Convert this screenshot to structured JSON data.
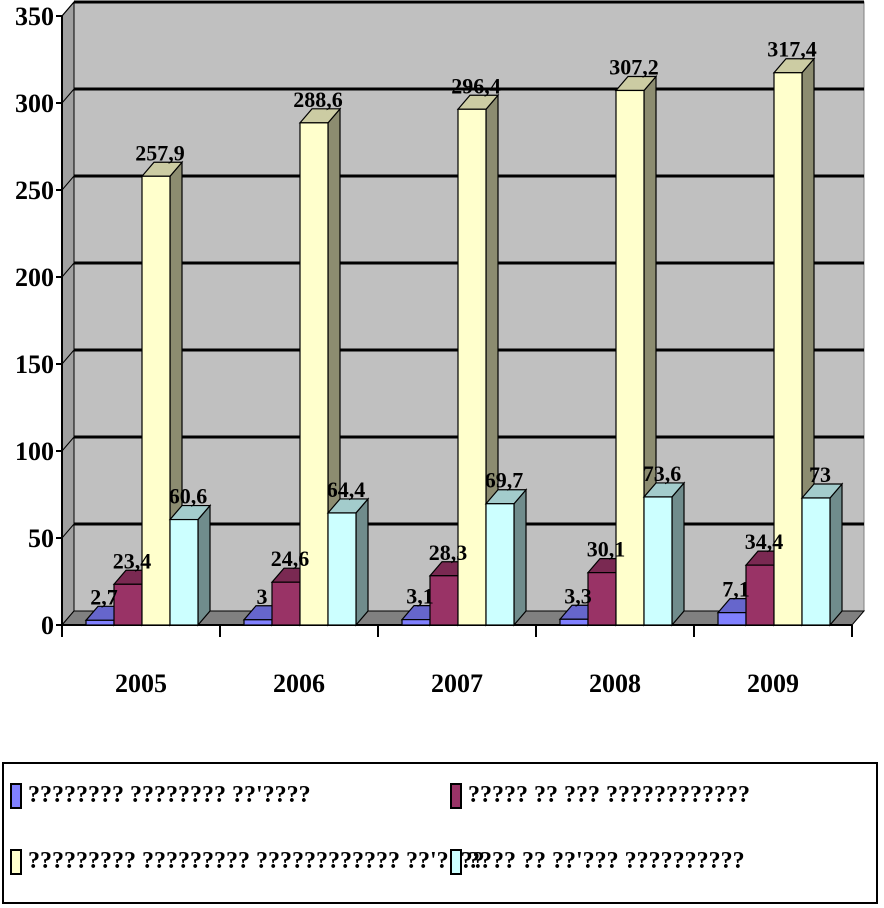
{
  "chart_data": {
    "type": "bar",
    "categories": [
      "2005",
      "2006",
      "2007",
      "2008",
      "2009"
    ],
    "series": [
      {
        "name": "???????? ???????? ??'????",
        "color": "#8080ff",
        "values": [
          2.7,
          3,
          3.1,
          3.3,
          7.1
        ],
        "labels": [
          "2,7",
          "3",
          "3,1",
          "3,3",
          "7,1"
        ]
      },
      {
        "name": "????? ?? ??? ????????????",
        "color": "#993366",
        "values": [
          23.4,
          24.6,
          28.3,
          30.1,
          34.4
        ],
        "labels": [
          "23,4",
          "24,6",
          "28,3",
          "30,1",
          "34,4"
        ]
      },
      {
        "name": "????????? ????????? ???????????? ??'????",
        "color": "#ffffcc",
        "values": [
          257.9,
          288.6,
          296.4,
          307.2,
          317.4
        ],
        "labels": [
          "257,9",
          "288,6",
          "296,4",
          "307,2",
          "317,4"
        ]
      },
      {
        "name": "???? ?? ??'??? ??????????",
        "color": "#ccffff",
        "values": [
          60.6,
          64.4,
          69.7,
          73.6,
          73
        ],
        "labels": [
          "60,6",
          "64,4",
          "69,7",
          "73,6",
          "73"
        ]
      }
    ],
    "yticks": [
      "0",
      "50",
      "100",
      "150",
      "200",
      "250",
      "300",
      "350"
    ],
    "ylim": [
      0,
      350
    ],
    "grid": true,
    "legend": "bottom",
    "plot_background": "#c0c0c0"
  }
}
